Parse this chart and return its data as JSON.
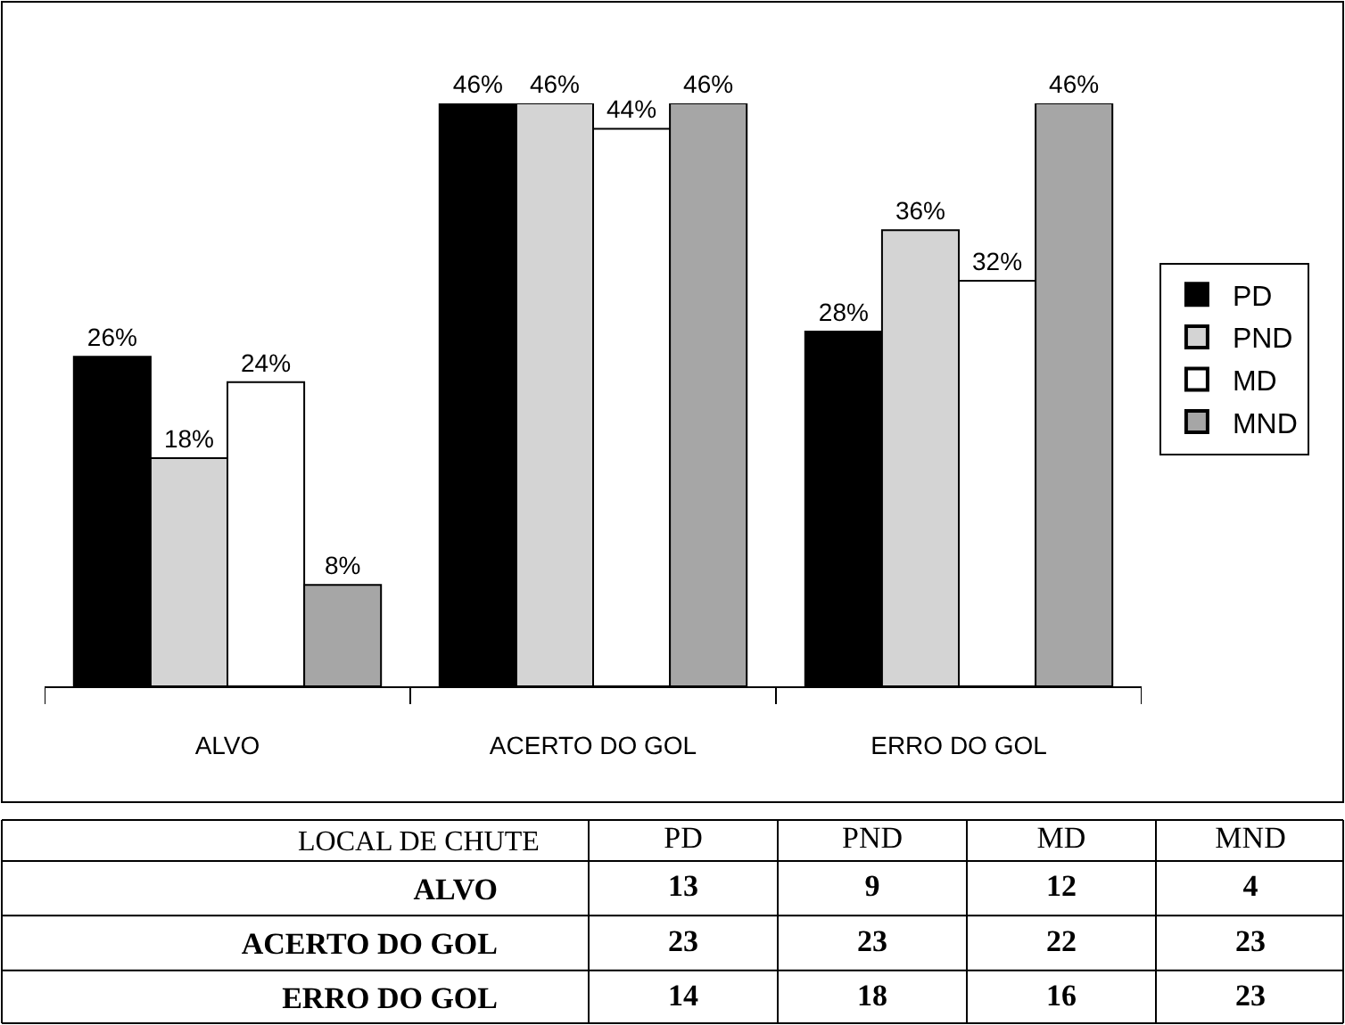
{
  "chart_data": [
    {
      "type": "bar",
      "categories": [
        "ALVO",
        "ACERTO DO GOL",
        "ERRO DO GOL"
      ],
      "legend": "right",
      "series": [
        {
          "name": "PD",
          "color": "#000000",
          "values": [
            26,
            46,
            28
          ],
          "value_labels": [
            "26%",
            "46%",
            "28%"
          ]
        },
        {
          "name": "PND",
          "color": "#d4d4d4",
          "values": [
            18,
            46,
            36
          ],
          "value_labels": [
            "18%",
            "46%",
            "36%"
          ]
        },
        {
          "name": "MD",
          "color": "#ffffff",
          "values": [
            24,
            44,
            32
          ],
          "value_labels": [
            "24%",
            "44%",
            "32%"
          ]
        },
        {
          "name": "MND",
          "color": "#a6a6a6",
          "values": [
            8,
            46,
            46
          ],
          "value_labels": [
            "8%",
            "46%",
            "46%"
          ]
        }
      ]
    },
    {
      "type": "heatmap",
      "data_labels": true,
      "ylabel": "LOCAL DE CHUTE",
      "categories": [
        "PD",
        "PND",
        "MD",
        "MND"
      ],
      "y_categories": [
        "ALVO",
        "ACERTO DO GOL",
        "ERRO DO GOL"
      ],
      "cells": [
        [
          13,
          9,
          12,
          4
        ],
        [
          23,
          23,
          22,
          23
        ],
        [
          14,
          18,
          16,
          23
        ]
      ]
    }
  ]
}
